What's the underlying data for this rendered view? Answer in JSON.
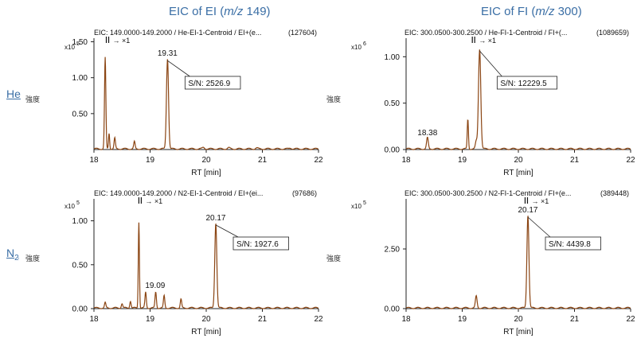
{
  "columns": [
    {
      "title_pre": "EIC of EI (",
      "title_em": "m/z",
      "title_post": " 149)"
    },
    {
      "title_pre": "EIC of FI (",
      "title_em": "m/z",
      "title_post": " 300)"
    }
  ],
  "rows": [
    {
      "label": "He",
      "label_sub": "",
      "sublabel": "強度"
    },
    {
      "label": "N",
      "label_sub": "2",
      "sublabel": "強度"
    }
  ],
  "accent_color": "#8b4513",
  "chart_data": [
    {
      "type": "line",
      "header": "EIC: 149.0000-149.2000 / He-EI-1-Centroid / EI+(e...",
      "header_count": "(127604)",
      "scale_label": "x10",
      "scale_exp": "5",
      "xlabel": "RT [min]",
      "xlim": [
        18,
        22
      ],
      "ylim": [
        0,
        1.55
      ],
      "xticks": [
        18,
        19,
        20,
        21,
        22
      ],
      "yticks": [
        0.5,
        1.0,
        1.5
      ],
      "ytick_labels": [
        "0.50",
        "1.00",
        "1.50"
      ],
      "marker_text": "→ ×1",
      "marker_x": 18.22,
      "peaks": [
        [
          18.2,
          1.27,
          0.012
        ],
        [
          18.27,
          0.22,
          0.01
        ],
        [
          18.37,
          0.15,
          0.012
        ],
        [
          18.72,
          0.1,
          0.012
        ],
        [
          19.31,
          1.26,
          0.018
        ],
        [
          19.95,
          0.02,
          0.02
        ],
        [
          20.4,
          0.015,
          0.02
        ],
        [
          20.9,
          0.012,
          0.02
        ],
        [
          21.5,
          0.012,
          0.02
        ]
      ],
      "annotations": [
        {
          "text": "19.31",
          "x": 19.31,
          "y": 1.26
        }
      ],
      "sn_label": "S/N: 2526.9",
      "sn_x": 19.31
    },
    {
      "type": "line",
      "header": "EIC: 300.0500-300.2500 / He-FI-1-Centroid / FI+(...",
      "header_count": "(1089659)",
      "scale_label": "x10",
      "scale_exp": "6",
      "xlabel": "RT [min]",
      "xlim": [
        18,
        22
      ],
      "ylim": [
        0,
        1.2
      ],
      "xticks": [
        18,
        19,
        20,
        21,
        22
      ],
      "yticks": [
        0.0,
        0.5,
        1.0
      ],
      "ytick_labels": [
        "0.00",
        "0.50",
        "1.00"
      ],
      "marker_text": "→ ×1",
      "marker_x": 19.18,
      "peaks": [
        [
          18.38,
          0.12,
          0.015
        ],
        [
          19.1,
          0.32,
          0.01
        ],
        [
          19.25,
          0.08,
          0.015
        ],
        [
          19.31,
          1.08,
          0.02
        ]
      ],
      "annotations": [
        {
          "text": "18.38",
          "x": 18.38,
          "y": 0.12
        }
      ],
      "sn_label": "S/N: 12229.5",
      "sn_x": 19.31
    },
    {
      "type": "line",
      "header": "EIC: 149.0000-149.2000 / N2-EI-1-Centroid / EI+(ei...",
      "header_count": "(97686)",
      "scale_label": "x10",
      "scale_exp": "5",
      "xlabel": "RT [min]",
      "xlim": [
        18,
        22
      ],
      "ylim": [
        0,
        1.25
      ],
      "xticks": [
        18,
        19,
        20,
        21,
        22
      ],
      "yticks": [
        0.0,
        0.5,
        1.0
      ],
      "ytick_labels": [
        "0.00",
        "0.50",
        "1.00"
      ],
      "marker_text": "→ ×1",
      "marker_x": 18.8,
      "peaks": [
        [
          18.2,
          0.06,
          0.012
        ],
        [
          18.5,
          0.05,
          0.012
        ],
        [
          18.65,
          0.08,
          0.012
        ],
        [
          18.8,
          0.98,
          0.01
        ],
        [
          18.92,
          0.18,
          0.012
        ],
        [
          19.1,
          0.18,
          0.012
        ],
        [
          19.25,
          0.14,
          0.012
        ],
        [
          19.55,
          0.1,
          0.012
        ],
        [
          20.17,
          0.97,
          0.018
        ]
      ],
      "annotations": [
        {
          "text": "19.09",
          "x": 19.09,
          "y": 0.2
        },
        {
          "text": "20.17",
          "x": 20.17,
          "y": 0.97
        }
      ],
      "sn_label": "S/N: 1927.6",
      "sn_x": 20.17
    },
    {
      "type": "line",
      "header": "EIC: 300.0500-300.2500 / N2-FI-1-Centroid / FI+(e...",
      "header_count": "(389448)",
      "scale_label": "x10",
      "scale_exp": "5",
      "xlabel": "RT [min]",
      "xlim": [
        18,
        22
      ],
      "ylim": [
        0,
        4.6
      ],
      "xticks": [
        18,
        19,
        20,
        21,
        22
      ],
      "yticks": [
        0.0,
        2.5
      ],
      "ytick_labels": [
        "0.00",
        "2.50"
      ],
      "marker_text": "→ ×1",
      "marker_x": 20.12,
      "peaks": [
        [
          19.25,
          0.5,
          0.015
        ],
        [
          20.17,
          3.9,
          0.018
        ]
      ],
      "annotations": [
        {
          "text": "20.17",
          "x": 20.17,
          "y": 3.9
        }
      ],
      "sn_label": "S/N: 4439.8",
      "sn_x": 20.17
    }
  ]
}
